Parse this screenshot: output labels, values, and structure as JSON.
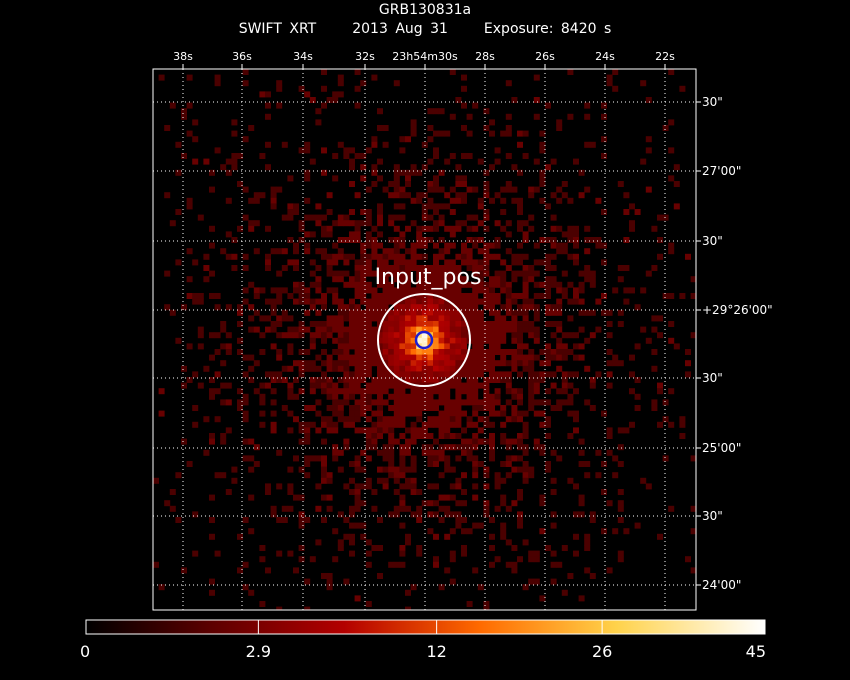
{
  "header": {
    "title": "GRB130831a",
    "instrument": "SWIFT XRT",
    "date": "2013 Aug 31",
    "exposure": "Exposure: 8420 s"
  },
  "chart_data": {
    "type": "heatmap",
    "title": "GRB130831a",
    "xlabel": "",
    "ylabel": "",
    "ra_ticks_top": [
      "38s",
      "36s",
      "34s",
      "32s",
      "23h54m30s",
      "28s",
      "26s",
      "24s",
      "22s"
    ],
    "dec_ticks_right": [
      "30\"",
      "27'00\"",
      "30\"",
      "+29°26'00\"",
      "30\"",
      "25'00\"",
      "30\"",
      "24'00\""
    ],
    "grid": true,
    "source": {
      "label": "Input_pos",
      "ra_offset_arcsec": 0,
      "dec_offset_arcsec": 0,
      "extraction_radius_arcsec": 20,
      "error_radius_arcsec": 3.5,
      "peak_counts": 45
    },
    "background_counts_per_pixel": 1,
    "colorbar": {
      "ticks": [
        "0",
        "2.9",
        "12",
        "26",
        "45"
      ],
      "tick_values": [
        0,
        2.9,
        12,
        26,
        45
      ],
      "min": 0,
      "max": 45,
      "scale": "sqrt",
      "colormap": [
        "#000000",
        "#5a0000",
        "#b30000",
        "#ff6a00",
        "#ffd24a",
        "#ffffff"
      ]
    }
  }
}
